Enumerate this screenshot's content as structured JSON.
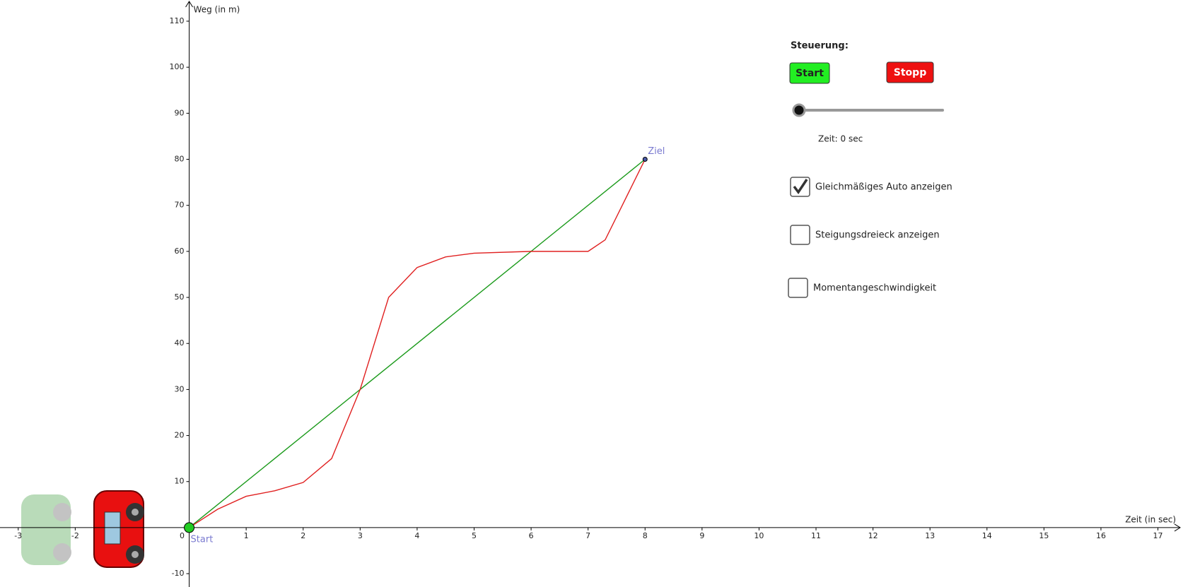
{
  "chart_data": {
    "type": "line",
    "x_label": "Zeit (in sec)",
    "y_label": "Weg (in m)",
    "xlim": [
      -3.32,
      17.44
    ],
    "ylim": [
      -12.9,
      114.6
    ],
    "xticks": [
      -3,
      -2,
      0,
      1,
      2,
      3,
      4,
      5,
      6,
      7,
      8,
      9,
      10,
      11,
      12,
      13,
      14,
      15,
      16,
      17
    ],
    "yticks": [
      -10,
      10,
      20,
      30,
      40,
      50,
      60,
      70,
      80,
      90,
      100,
      110
    ],
    "series": [
      {
        "color": "#1a9a1a",
        "x": [
          0,
          8
        ],
        "values": [
          0,
          80
        ]
      },
      {
        "color": "#e02020",
        "x": [
          0,
          0.5,
          1,
          1.5,
          2,
          2.5,
          3,
          3.5,
          4,
          4.5,
          5,
          6,
          7,
          7.3,
          7.6,
          8
        ],
        "values": [
          0,
          4,
          6.8,
          8,
          9.8,
          15,
          30,
          50,
          56.5,
          58.8,
          59.6,
          60,
          60,
          62.5,
          70,
          80
        ]
      }
    ],
    "points": [
      {
        "label": "Start",
        "x": 0,
        "y": 0,
        "color": "#22cc22"
      },
      {
        "label": "Ziel",
        "x": 8,
        "y": 80,
        "color": "#4a5aa8"
      }
    ]
  },
  "controls": {
    "heading": "Steuerung:",
    "start_button": "Start",
    "stop_button": "Stopp",
    "slider_label": "Zeit: 0 sec",
    "checkboxes": [
      {
        "label": "Gleichmäßiges Auto anzeigen",
        "checked": true
      },
      {
        "label": "Steigungsdreieck anzeigen",
        "checked": false
      },
      {
        "label": "Momentangeschwindigkeit",
        "checked": false
      }
    ]
  }
}
